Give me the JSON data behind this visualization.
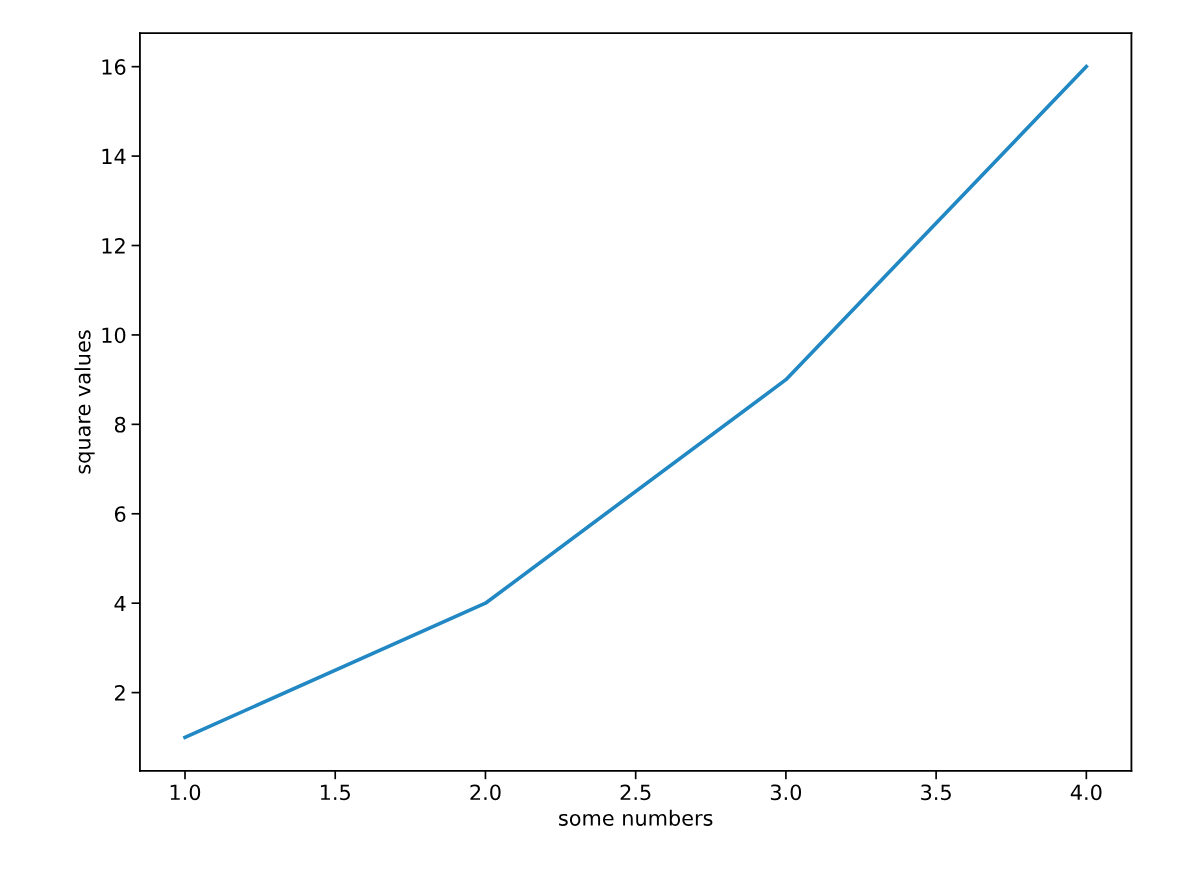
{
  "chart_data": {
    "type": "line",
    "xlabel": "some numbers",
    "ylabel": "square values",
    "x": [
      1,
      2,
      3,
      4
    ],
    "series": [
      {
        "color": "#2188c4",
        "values": [
          1,
          4,
          9,
          16
        ]
      }
    ],
    "xlim": [
      0.85,
      4.15
    ],
    "ylim": [
      0.25,
      16.75
    ],
    "xticks": [
      {
        "value": 1,
        "label": "1.0"
      },
      {
        "value": 1.5,
        "label": "1.5"
      },
      {
        "value": 2,
        "label": "2.0"
      },
      {
        "value": 2.5,
        "label": "2.5"
      },
      {
        "value": 3,
        "label": "3.0"
      },
      {
        "value": 3.5,
        "label": "3.5"
      },
      {
        "value": 4,
        "label": "4.0"
      }
    ],
    "yticks": [
      2,
      4,
      6,
      8,
      10,
      12,
      14,
      16
    ],
    "grid": false
  }
}
